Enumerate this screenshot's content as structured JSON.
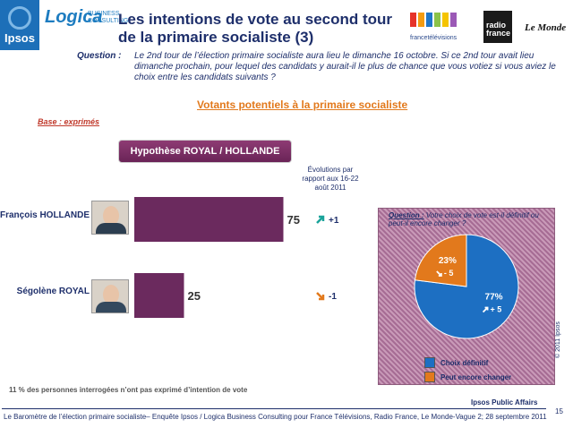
{
  "header": {
    "ipsos_logo": "Ipsos",
    "logica_logo": "Logica",
    "logica_sub_1": "BUSINESS",
    "logica_sub_2": "CONSULTING",
    "title_line1": "Les intentions de vote au second tour",
    "title_line2": "de la primaire socialiste (3)",
    "ftv_logo": "francetélévisions",
    "radio_france_1": "radio",
    "radio_france_2": "france",
    "le_monde": "Le Monde"
  },
  "question": {
    "label": "Question :",
    "text": "Le 2nd tour de l’élection primaire socialiste aura lieu le dimanche 16 octobre. Si ce 2nd tour avait lieu dimanche prochain, pour lequel des candidats y aurait-il le plus de chance que vous votiez si vous aviez le choix entre les candidats suivants ?"
  },
  "subtitle": "Votants potentiels à la primaire socialiste",
  "base": "Base : exprimés",
  "hypothesis": "Hypothèse ROYAL / HOLLANDE",
  "evolution_header": "Évolutions par rapport aux 16-22 août 2011",
  "chart_data": [
    {
      "type": "bar",
      "title": "Hypothèse ROYAL / HOLLANDE",
      "categories": [
        "François HOLLANDE",
        "Ségolène ROYAL"
      ],
      "values": [
        75,
        25
      ],
      "evolutions": [
        "+1",
        "-1"
      ],
      "xlim": [
        0,
        100
      ],
      "colors": {
        "bar": "#6b2a5e",
        "up_arrow": "#1aa39a",
        "down_arrow": "#e2791c"
      }
    },
    {
      "type": "pie",
      "title": "Question : Votre choix de vote est-il définitif ou peut-il encore changer ?",
      "labels": [
        "Choix définitif",
        "Peut encore changer"
      ],
      "values": [
        77,
        23
      ],
      "value_labels": [
        "77%",
        "23%"
      ],
      "evolutions": [
        "+ 5",
        "- 5"
      ],
      "colors": [
        "#1d6fc2",
        "#e2791c"
      ]
    }
  ],
  "pie_question_label": "Question :",
  "pie_question_text": "Votre choix de vote est-il définitif ou peut-il encore changer ?",
  "footnote": "11 % des personnes interrogées n’ont pas exprimé d’intention de vote",
  "ipsos_public_affairs": "Ipsos Public Affairs",
  "footer": "Le Baromètre de l’élection primaire socialiste– Enquête Ipsos / Logica Business Consulting pour France Télévisions, Radio France, Le Monde-Vague 2; 28 septembre 2011",
  "page_number": "15",
  "copyright": "© 2011 Ipsos"
}
